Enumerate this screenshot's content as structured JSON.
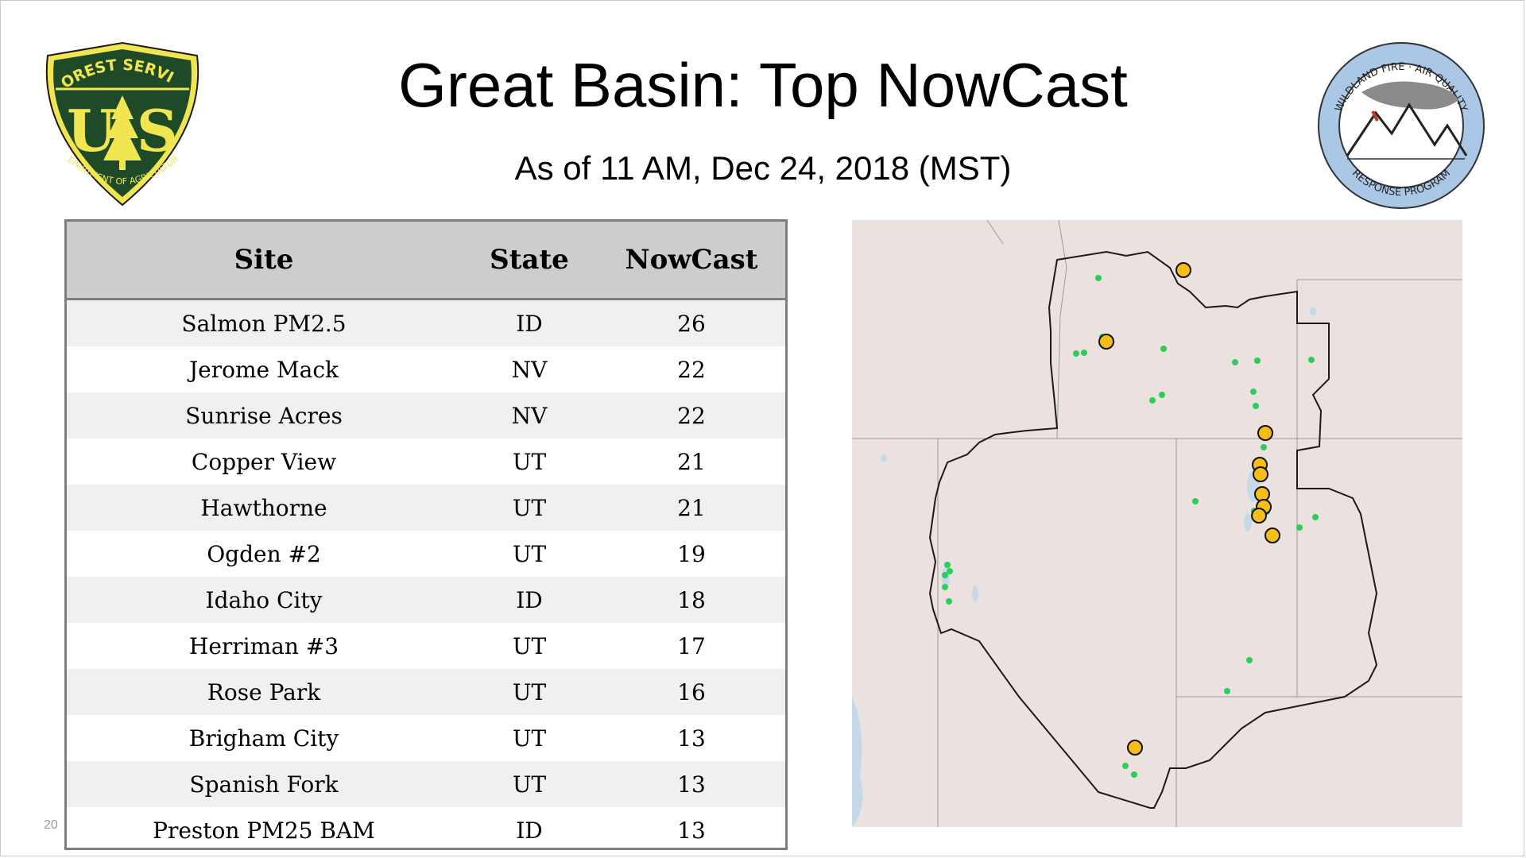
{
  "slide": {
    "title": "Great Basin: Top NowCast",
    "subtitle": "As of 11 AM, Dec 24, 2018 (MST)",
    "page_number": "20"
  },
  "logos": {
    "left": {
      "top_text": "FOREST SERVICE",
      "letters": "U S",
      "bottom_text": "DEPARTMENT OF AGRICULTURE"
    },
    "right": {
      "top_text": "WILDLAND FIRE · AIR QUALITY",
      "bottom_text": "RESPONSE PROGRAM"
    }
  },
  "table": {
    "headers": [
      "Site",
      "State",
      "NowCast"
    ],
    "rows": [
      [
        "Salmon PM2.5",
        "ID",
        "26"
      ],
      [
        "Jerome Mack",
        "NV",
        "22"
      ],
      [
        "Sunrise Acres",
        "NV",
        "22"
      ],
      [
        "Copper View",
        "UT",
        "21"
      ],
      [
        "Hawthorne",
        "UT",
        "21"
      ],
      [
        "Ogden #2",
        "UT",
        "19"
      ],
      [
        "Idaho City",
        "ID",
        "18"
      ],
      [
        "Herriman #3",
        "UT",
        "17"
      ],
      [
        "Rose Park",
        "UT",
        "16"
      ],
      [
        "Brigham City",
        "UT",
        "13"
      ],
      [
        "Spanish Fork",
        "UT",
        "13"
      ],
      [
        "Preston PM25 BAM",
        "ID",
        "13"
      ]
    ]
  },
  "map": {
    "colors": {
      "land": "#ebe2e0",
      "water": "#c5d9eb",
      "boundary": "#1a1a1a",
      "state_lines": "#9a9a9a",
      "top_site_fill": "#f5bd16",
      "other_site_fill": "#2ecc5c"
    }
  }
}
